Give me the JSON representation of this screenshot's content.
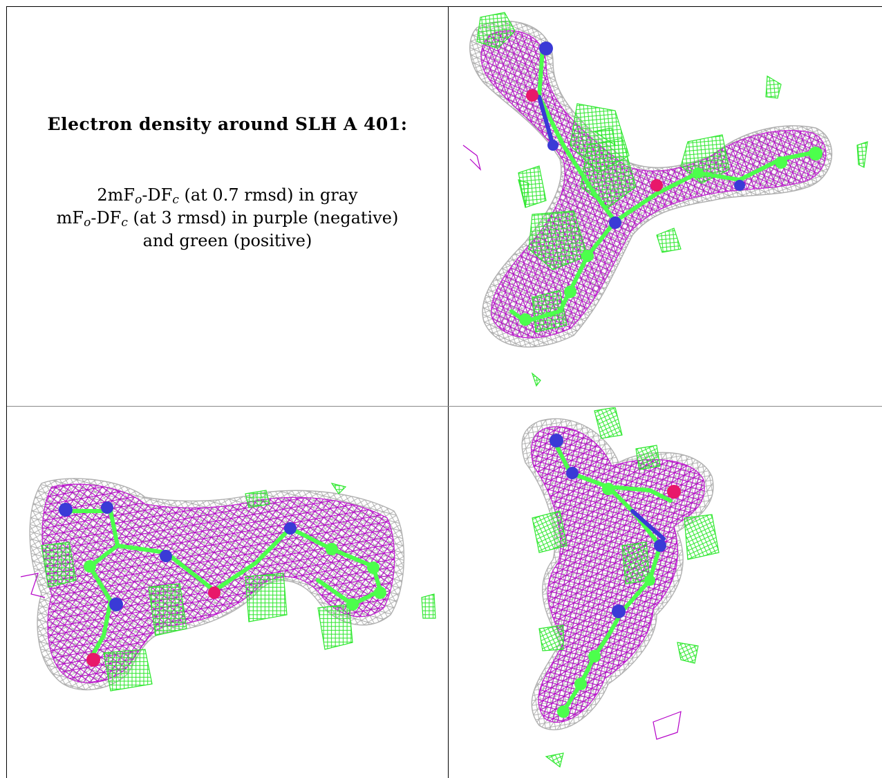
{
  "caption": {
    "title": "Electron density around SLH A 401:",
    "line1": {
      "pre": "2mF",
      "sub1": "o",
      "mid": "-DF",
      "sub2": "c",
      "post": " (at 0.7 rmsd) in gray"
    },
    "line2": {
      "pre": "mF",
      "sub1": "o",
      "mid": "-DF",
      "sub2": "c",
      "post": " (at 3 rmsd) in purple (negative)"
    },
    "line3": "and green (positive)"
  },
  "colors": {
    "gray_mesh": "#a8a8a8",
    "purple_mesh": "#b400c8",
    "green_mesh": "#2ee82e",
    "carbon_atom": "#4cff4c",
    "nitrogen_atom": "#3a3ad6",
    "oxygen_atom": "#e8186a",
    "border": "#000000"
  },
  "panels": [
    {
      "name": "view-top-right",
      "content": "electron-density-mesh"
    },
    {
      "name": "view-bottom-left",
      "content": "electron-density-mesh"
    },
    {
      "name": "view-bottom-right",
      "content": "electron-density-mesh"
    }
  ]
}
